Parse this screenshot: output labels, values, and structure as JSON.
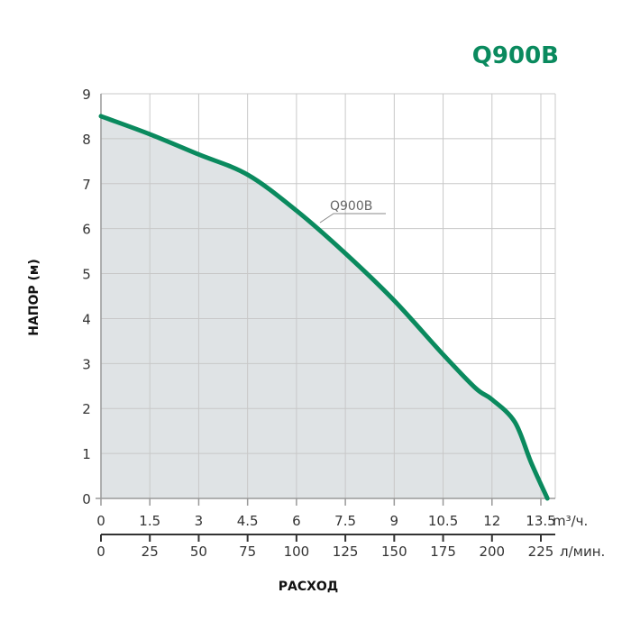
{
  "chart_data": {
    "type": "area",
    "title": "Q900B",
    "ylabel": "НАПОР (м)",
    "xlabel": "РАСХОД",
    "x_unit": "m³/ч.",
    "x2_unit": "л/мин.",
    "xlim": [
      0,
      14
    ],
    "ylim": [
      0,
      9
    ],
    "grid": true,
    "x_ticks": [
      "0",
      "1.5",
      "3",
      "4.5",
      "6",
      "7.5",
      "9",
      "10.5",
      "12",
      "13.5"
    ],
    "x2_ticks": [
      "0",
      "25",
      "50",
      "75",
      "100",
      "125",
      "150",
      "175",
      "200",
      "225"
    ],
    "y_ticks": [
      "0",
      "1",
      "2",
      "3",
      "4",
      "5",
      "6",
      "7",
      "8",
      "9"
    ],
    "series": [
      {
        "name": "Q900B",
        "color": "#0a8a5e",
        "fill": "#dfe3e5",
        "x": [
          0,
          1.5,
          3,
          4.5,
          6,
          7.5,
          9,
          10.5,
          11.5,
          12,
          12.7,
          13.2,
          13.7
        ],
        "y": [
          8.5,
          8.1,
          7.65,
          7.2,
          6.4,
          5.45,
          4.4,
          3.2,
          2.45,
          2.2,
          1.7,
          0.8,
          0
        ]
      }
    ]
  }
}
